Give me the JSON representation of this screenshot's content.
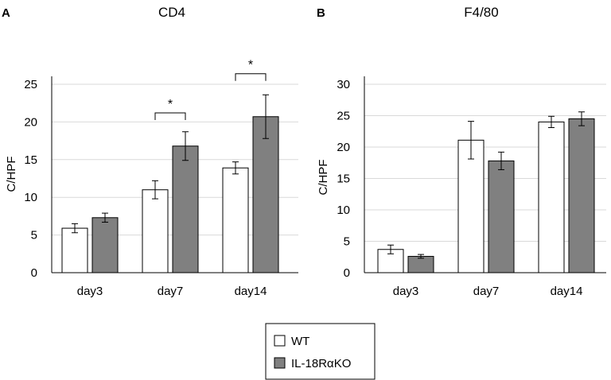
{
  "chart_data": [
    {
      "type": "bar",
      "panel": "A",
      "title": "CD4",
      "ylabel": "C/HPF",
      "xlabel": "",
      "ylim": [
        0,
        25
      ],
      "yticks": [
        0,
        5,
        10,
        15,
        20,
        25
      ],
      "grid": true,
      "categories": [
        "day3",
        "day7",
        "day14"
      ],
      "series": [
        {
          "name": "WT",
          "color": "#ffffff",
          "values": [
            5.9,
            11.0,
            13.9
          ],
          "errors": [
            0.6,
            1.2,
            0.8
          ]
        },
        {
          "name": "IL-18RαKO",
          "color": "#808080",
          "values": [
            7.3,
            16.8,
            20.7
          ],
          "errors": [
            0.6,
            1.9,
            2.9
          ]
        }
      ],
      "annotations": [
        {
          "category": "day7",
          "text": "*",
          "bracket_value": 21.2
        },
        {
          "category": "day14",
          "text": "*",
          "bracket_value": 26.4
        }
      ]
    },
    {
      "type": "bar",
      "panel": "B",
      "title": "F4/80",
      "ylabel": "C/HPF",
      "xlabel": "",
      "ylim": [
        0,
        30
      ],
      "yticks": [
        0,
        5,
        10,
        15,
        20,
        25,
        30
      ],
      "grid": true,
      "categories": [
        "day3",
        "day7",
        "day14"
      ],
      "series": [
        {
          "name": "WT",
          "color": "#ffffff",
          "values": [
            3.7,
            21.1,
            24.0
          ],
          "errors": [
            0.7,
            3.0,
            0.9
          ]
        },
        {
          "name": "IL-18RαKO",
          "color": "#808080",
          "values": [
            2.6,
            17.8,
            24.5
          ],
          "errors": [
            0.3,
            1.4,
            1.1
          ]
        }
      ],
      "annotations": []
    }
  ],
  "legend": {
    "items": [
      {
        "label": "WT",
        "color": "#ffffff"
      },
      {
        "label": "IL-18RαKO",
        "color": "#808080"
      }
    ]
  }
}
